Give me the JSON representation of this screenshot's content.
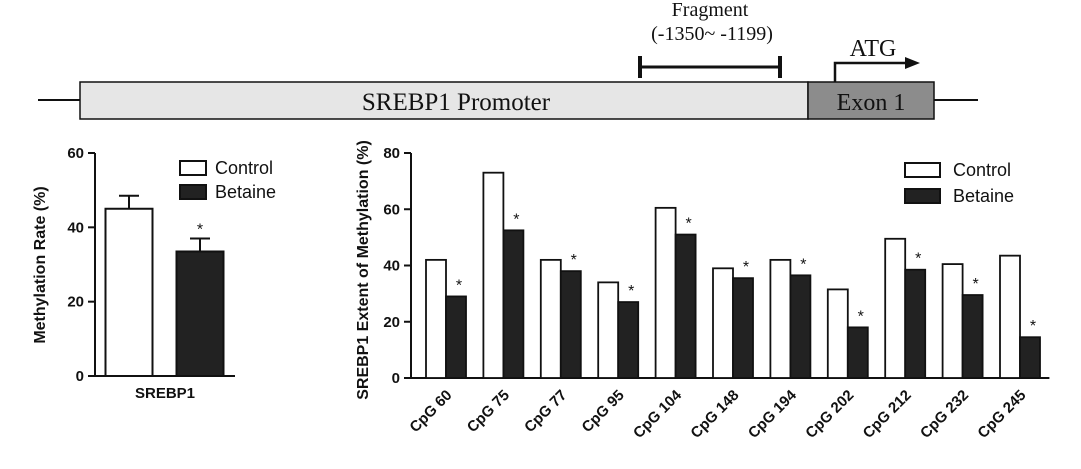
{
  "promoter": {
    "fragment_label": "Fragment",
    "fragment_range": "(-1350~ -1199)",
    "atg_label": "ATG",
    "promoter_label": "SREBP1 Promoter",
    "exon_label": "Exon 1"
  },
  "colors": {
    "control_fill": "#ffffff",
    "betaine_fill": "#222222",
    "promoter_fill": "#e6e6e6",
    "exon_fill": "#8c8c8c",
    "axis": "#111111"
  },
  "chart_data": [
    {
      "type": "bar",
      "ylabel": "Methylation Rate (%)",
      "ylim": [
        0,
        60
      ],
      "yticks": [
        0,
        20,
        40,
        60
      ],
      "categories": [
        "SREBP1"
      ],
      "series": [
        {
          "name": "Control",
          "values": [
            45
          ],
          "errors": [
            3.5
          ]
        },
        {
          "name": "Betaine",
          "values": [
            33.5
          ],
          "errors": [
            3.5
          ]
        }
      ],
      "significance": [
        [
          "",
          "*"
        ]
      ],
      "legend": "top-right",
      "grid": false
    },
    {
      "type": "bar",
      "ylabel": "SREBP1 Extent of Methylation (%)",
      "ylim": [
        0,
        80
      ],
      "yticks": [
        0,
        20,
        40,
        60,
        80
      ],
      "categories": [
        "CpG 60",
        "CpG 75",
        "CpG 77",
        "CpG 95",
        "CpG 104",
        "CpG 148",
        "CpG 194",
        "CpG 202",
        "CpG 212",
        "CpG 232",
        "CpG 245"
      ],
      "series": [
        {
          "name": "Control",
          "values": [
            42,
            73,
            42,
            34,
            60.5,
            39,
            42,
            31.5,
            49.5,
            40.5,
            43.5
          ]
        },
        {
          "name": "Betaine",
          "values": [
            29,
            52.5,
            38,
            27,
            51,
            35.5,
            36.5,
            18,
            38.5,
            29.5,
            14.5
          ]
        }
      ],
      "significance": [
        "*",
        "*",
        "*",
        "*",
        "*",
        "*",
        "*",
        "*",
        "*",
        "*",
        "*"
      ],
      "legend": "top-right",
      "grid": false
    }
  ]
}
